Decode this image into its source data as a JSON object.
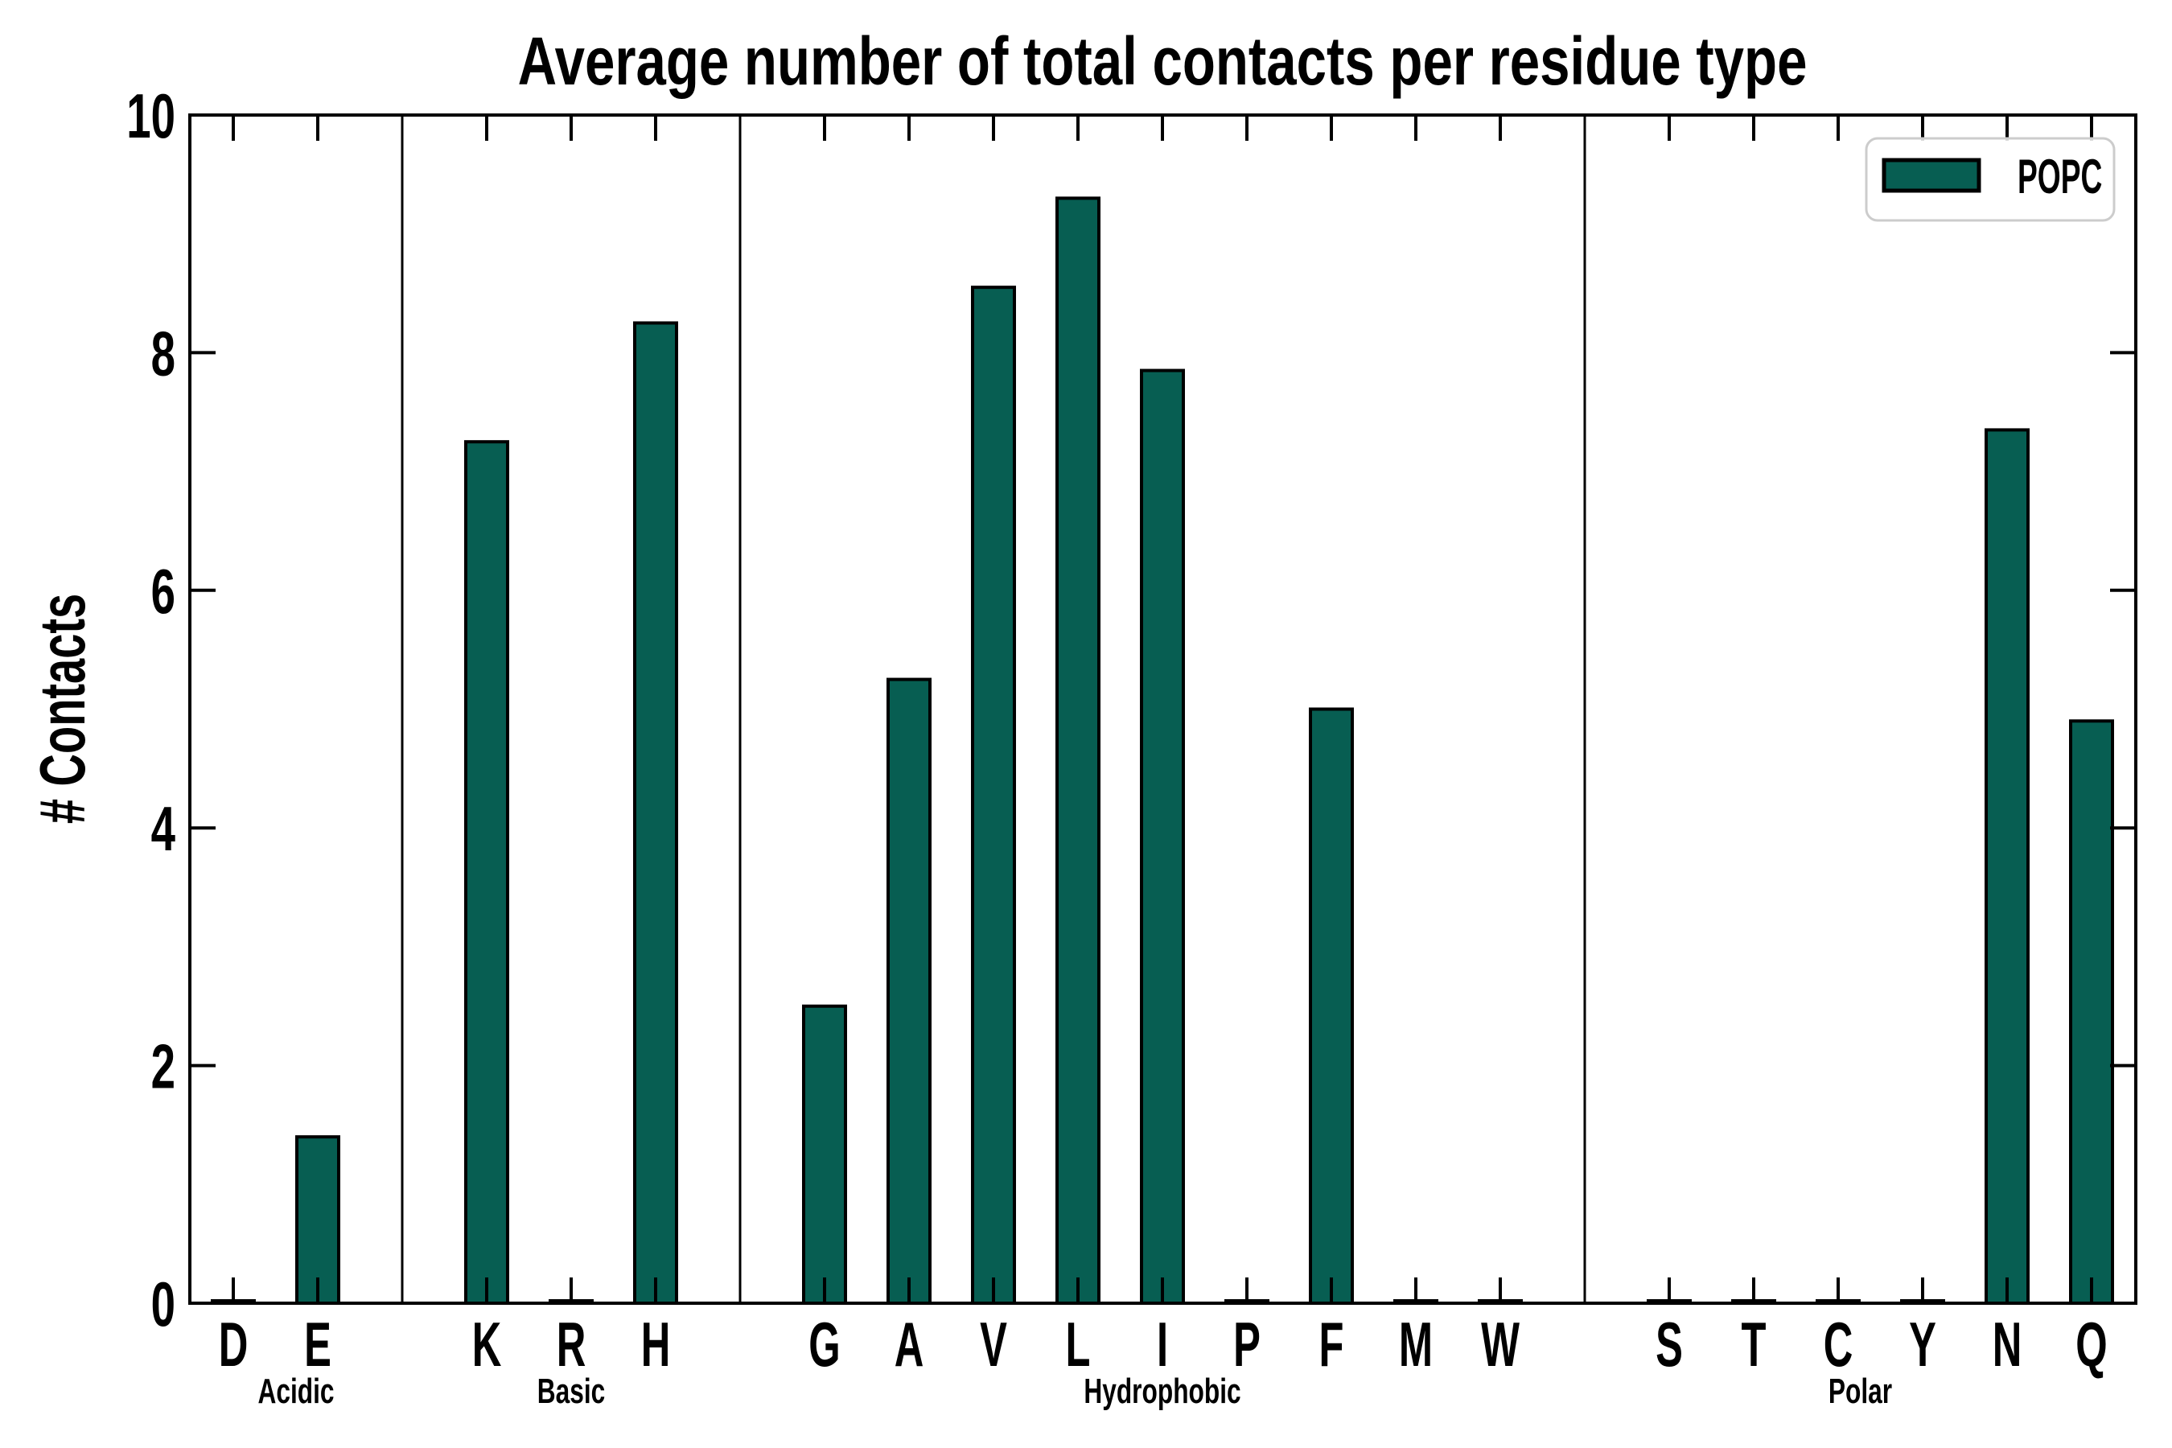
{
  "chart_data": {
    "type": "bar",
    "title": "Average number of total contacts per residue type",
    "ylabel": "# Contacts",
    "xlabel": "",
    "ylim": [
      0,
      10
    ],
    "yticks": [
      0,
      2,
      4,
      6,
      8,
      10
    ],
    "grid": false,
    "bar_color": "#075E52",
    "bar_edge_color": "#000000",
    "categories": [
      "D",
      "E",
      "K",
      "R",
      "H",
      "G",
      "A",
      "V",
      "L",
      "I",
      "P",
      "F",
      "M",
      "W",
      "S",
      "T",
      "C",
      "Y",
      "N",
      "Q"
    ],
    "values": [
      0,
      1.4,
      7.25,
      0,
      8.25,
      2.5,
      5.25,
      8.55,
      9.3,
      7.85,
      0,
      5.0,
      0,
      0,
      0,
      0,
      0,
      0,
      7.35,
      4.9
    ],
    "groups": [
      {
        "label": "Acidic",
        "members": [
          "D",
          "E"
        ]
      },
      {
        "label": "Basic",
        "members": [
          "K",
          "R",
          "H"
        ]
      },
      {
        "label": "Hydrophobic",
        "members": [
          "G",
          "A",
          "V",
          "L",
          "I",
          "P",
          "F",
          "M",
          "W"
        ]
      },
      {
        "label": "Polar",
        "members": [
          "S",
          "T",
          "C",
          "Y",
          "N",
          "Q"
        ]
      }
    ],
    "legend": {
      "position": "upper right",
      "entries": [
        {
          "label": "POPC",
          "color": "#075E52"
        }
      ]
    }
  }
}
